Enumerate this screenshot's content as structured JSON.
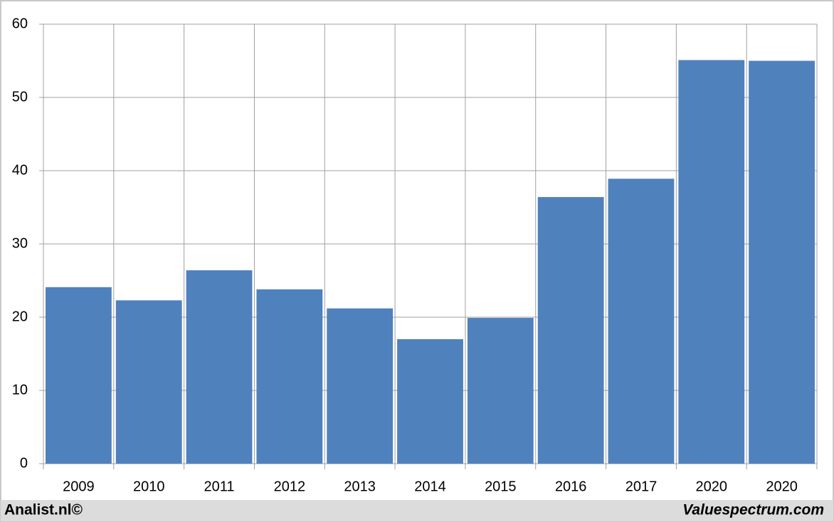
{
  "chart_data": {
    "type": "bar",
    "categories": [
      "2009",
      "2010",
      "2011",
      "2012",
      "2013",
      "2014",
      "2015",
      "2016",
      "2017",
      "2020",
      "2020"
    ],
    "values": [
      24.1,
      22.3,
      26.4,
      23.8,
      21.2,
      17.0,
      19.9,
      36.4,
      38.9,
      55.1,
      55.0
    ],
    "color": "#4f81bd",
    "ylim": [
      0,
      60
    ],
    "yticks": [
      0,
      10,
      20,
      30,
      40,
      50,
      60
    ],
    "grid": true
  },
  "footer": {
    "left": "Analist.nl©",
    "right": "Valuespectrum.com"
  }
}
